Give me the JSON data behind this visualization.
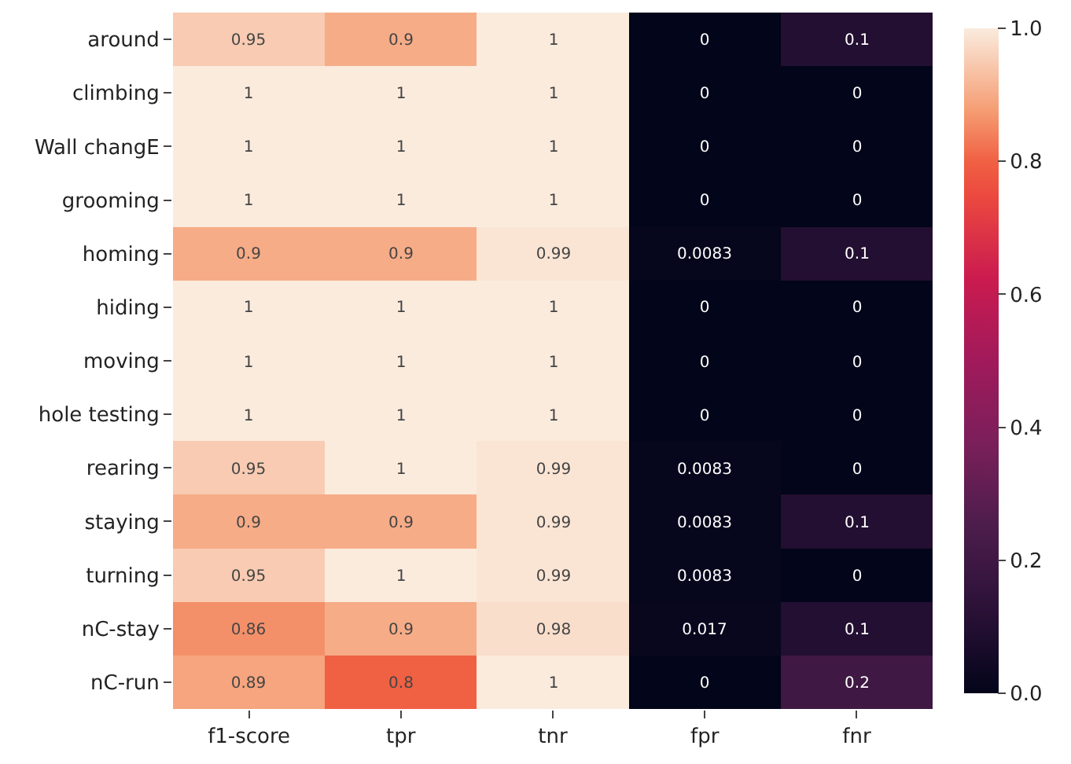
{
  "chart_data": {
    "type": "heatmap",
    "categories": [
      "f1-score",
      "tpr",
      "tnr",
      "fpr",
      "fnr"
    ],
    "y_categories": [
      "around",
      "climbing",
      "Wall changE",
      "grooming",
      "homing",
      "hiding",
      "moving",
      "hole testing",
      "rearing",
      "staying",
      "turning",
      "nC-stay",
      "nC-run"
    ],
    "cells": [
      [
        0.95,
        0.9,
        1,
        0,
        0.1
      ],
      [
        1,
        1,
        1,
        0,
        0
      ],
      [
        1,
        1,
        1,
        0,
        0
      ],
      [
        1,
        1,
        1,
        0,
        0
      ],
      [
        0.9,
        0.9,
        0.99,
        0.0083,
        0.1
      ],
      [
        1,
        1,
        1,
        0,
        0
      ],
      [
        1,
        1,
        1,
        0,
        0
      ],
      [
        1,
        1,
        1,
        0,
        0
      ],
      [
        0.95,
        1,
        0.99,
        0.0083,
        0
      ],
      [
        0.9,
        0.9,
        0.99,
        0.0083,
        0.1
      ],
      [
        0.95,
        1,
        0.99,
        0.0083,
        0
      ],
      [
        0.86,
        0.9,
        0.98,
        0.017,
        0.1
      ],
      [
        0.89,
        0.8,
        1,
        0,
        0.2
      ]
    ],
    "clim": [
      0,
      1
    ],
    "cticks": [
      {
        "value": 0,
        "label": "0.0"
      },
      {
        "value": 0.2,
        "label": "0.2"
      },
      {
        "value": 0.4,
        "label": "0.4"
      },
      {
        "value": 0.6,
        "label": "0.6"
      },
      {
        "value": 0.8,
        "label": "0.8"
      },
      {
        "value": 1,
        "label": "1.0"
      }
    ],
    "data_labels": true
  }
}
